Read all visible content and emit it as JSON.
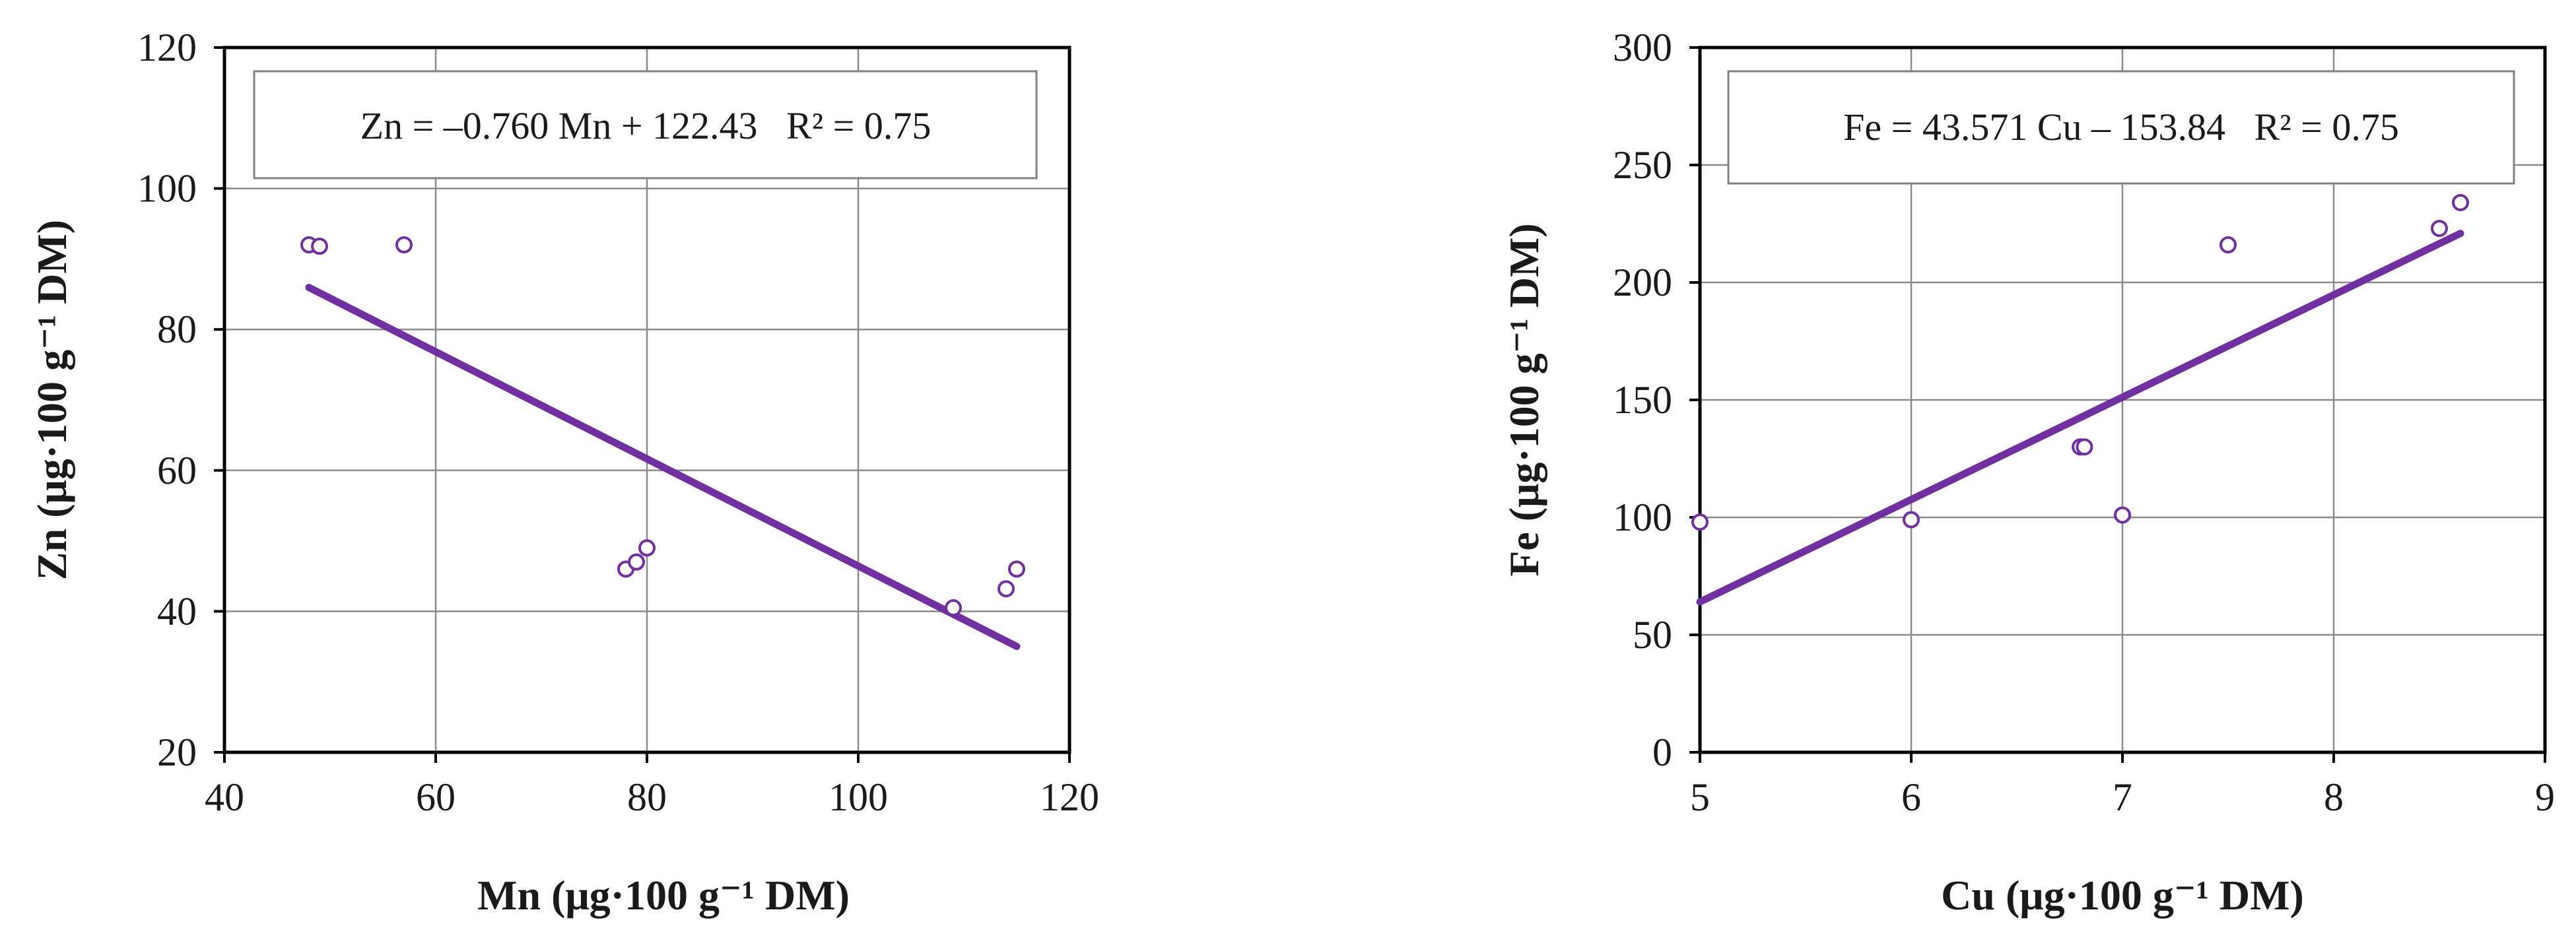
{
  "colors": {
    "series": "#7030a0",
    "grid": "#8a8a8a",
    "axis": "#000000"
  },
  "chart_data": [
    {
      "type": "scatter",
      "xlabel": "Mn (μg·100 g⁻¹ DM)",
      "ylabel": "Zn (μg·100 g⁻¹ DM)",
      "xlim": [
        40,
        120
      ],
      "ylim": [
        20,
        120
      ],
      "x_ticks": [
        "40",
        "60",
        "80",
        "100",
        "120"
      ],
      "y_ticks": [
        "20",
        "40",
        "60",
        "80",
        "100",
        "120"
      ],
      "grid": true,
      "equation": "Zn = –0.760 Mn + 122.43   R² = 0.75",
      "points": [
        {
          "x": 48,
          "y": 92
        },
        {
          "x": 49,
          "y": 91.8
        },
        {
          "x": 57,
          "y": 92
        },
        {
          "x": 78,
          "y": 46
        },
        {
          "x": 79,
          "y": 47
        },
        {
          "x": 80,
          "y": 49
        },
        {
          "x": 109,
          "y": 40.5
        },
        {
          "x": 114,
          "y": 43.2
        },
        {
          "x": 115,
          "y": 46
        }
      ],
      "trendline": {
        "slope": -0.76,
        "intercept": 122.43,
        "x_range": [
          48,
          115
        ]
      }
    },
    {
      "type": "scatter",
      "xlabel": "Cu (μg·100 g⁻¹ DM)",
      "ylabel": "Fe (μg·100 g⁻¹ DM)",
      "xlim": [
        5,
        9
      ],
      "ylim": [
        0,
        300
      ],
      "x_ticks": [
        "5",
        "6",
        "7",
        "8",
        "9"
      ],
      "y_ticks": [
        "0",
        "50",
        "100",
        "150",
        "200",
        "250",
        "300"
      ],
      "grid": true,
      "equation": "Fe = 43.571 Cu – 153.84   R² = 0.75",
      "points": [
        {
          "x": 5.0,
          "y": 98
        },
        {
          "x": 6.0,
          "y": 99
        },
        {
          "x": 6.8,
          "y": 130
        },
        {
          "x": 6.82,
          "y": 130
        },
        {
          "x": 7.0,
          "y": 101
        },
        {
          "x": 7.5,
          "y": 216
        },
        {
          "x": 8.5,
          "y": 223
        },
        {
          "x": 8.6,
          "y": 234
        }
      ],
      "trendline": {
        "slope": 43.571,
        "intercept": -153.84,
        "x_range": [
          5,
          8.6
        ]
      }
    }
  ]
}
